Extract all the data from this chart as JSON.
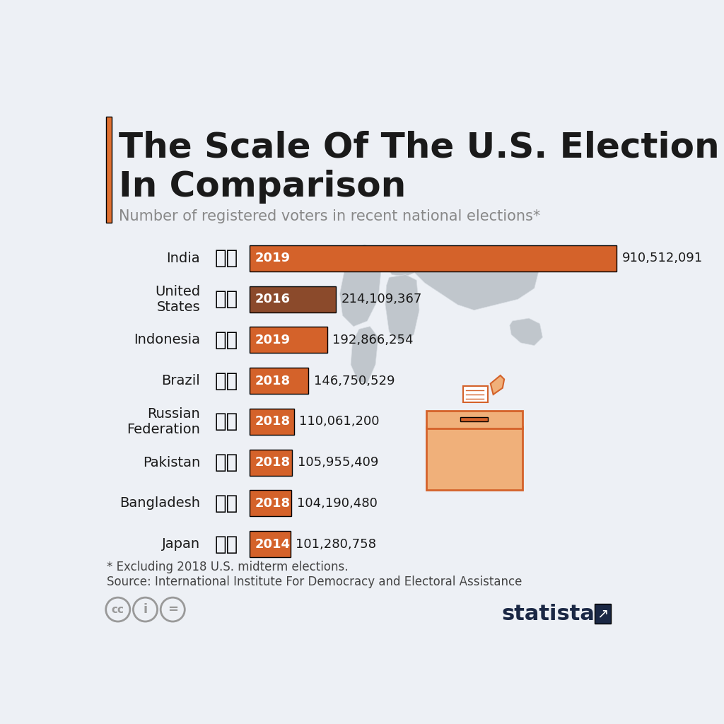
{
  "title_line1": "The Scale Of The U.S. Election",
  "title_line2": "In Comparison",
  "subtitle": "Number of registered voters in recent national elections*",
  "footnote1": "* Excluding 2018 U.S. midterm elections.",
  "footnote2": "Source: International Institute For Democracy and Electoral Assistance",
  "background_color": "#edf0f5",
  "bar_color_india": "#d4622a",
  "bar_color_us": "#8b4a2b",
  "bar_color_others": "#d4622a",
  "title_accent_color": "#e07030",
  "title_color": "#1a1a1a",
  "subtitle_color": "#888888",
  "countries": [
    "India",
    "United\nStates",
    "Indonesia",
    "Brazil",
    "Russian\nFederation",
    "Pakistan",
    "Bangladesh",
    "Japan"
  ],
  "years": [
    "2019",
    "2016",
    "2019",
    "2018",
    "2018",
    "2018",
    "2018",
    "2014"
  ],
  "values": [
    910512091,
    214109367,
    192866254,
    146750529,
    110061200,
    105955409,
    104190480,
    101280758
  ],
  "value_labels": [
    "910,512,091",
    "214,109,367",
    "192,866,254",
    "146,750,529",
    "110,061,200",
    "105,955,409",
    "104,190,480",
    "101,280,758"
  ],
  "bar_colors": [
    "#d4622a",
    "#8b4a2b",
    "#d4622a",
    "#d4622a",
    "#d4622a",
    "#d4622a",
    "#d4622a",
    "#d4622a"
  ],
  "flag_keys": [
    "india",
    "us",
    "indonesia",
    "brazil",
    "russia",
    "pakistan",
    "bangladesh",
    "japan"
  ],
  "map_color": "#c0c6cc",
  "statista_color": "#1a2744"
}
